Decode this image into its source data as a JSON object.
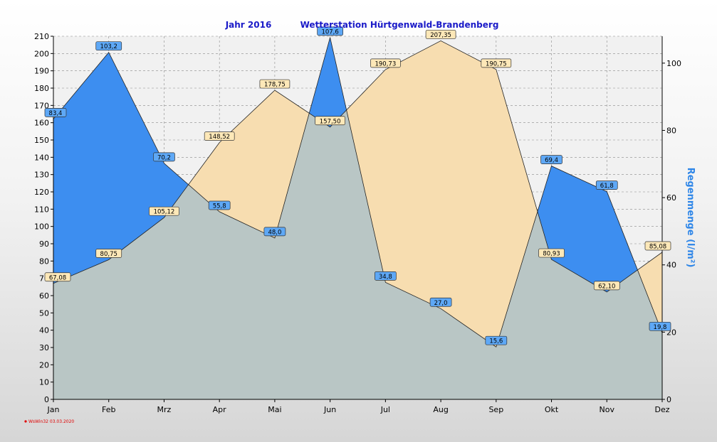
{
  "chart_data": {
    "type": "area",
    "title_year": "Jahr  2016",
    "title_station": "Wetterstation Hürtgenwald-Brandenberg",
    "categories": [
      "Jan",
      "Feb",
      "Mrz",
      "Apr",
      "Mai",
      "Jun",
      "Jul",
      "Aug",
      "Sep",
      "Okt",
      "Nov",
      "Dez"
    ],
    "left_axis": {
      "label": "",
      "range": [
        0,
        210
      ],
      "step": 10
    },
    "right_axis": {
      "label": "Regenmenge  (l/m²)",
      "range": [
        0,
        108
      ],
      "ticks": [
        0,
        20,
        40,
        60,
        80,
        100
      ]
    },
    "series": [
      {
        "axis": "left",
        "fill": "#f7ddb0",
        "label_bg": "#fde8b8",
        "values": [
          67.08,
          80.75,
          105.12,
          148.52,
          178.75,
          157.5,
          190.73,
          207.35,
          190.75,
          80.93,
          62.1,
          85.08
        ],
        "labels": [
          "67,08",
          "80,75",
          "105,12",
          "148,52",
          "178,75",
          "157,50",
          "190,73",
          "207,35",
          "190,75",
          "80,93",
          "62,10",
          "85,08"
        ]
      },
      {
        "axis": "right",
        "fill": "#3d8ef0",
        "label_bg": "#5ea8f6",
        "values": [
          83.4,
          103.2,
          70.2,
          55.8,
          48.0,
          107.6,
          34.8,
          27.0,
          15.6,
          69.4,
          61.8,
          19.8
        ],
        "labels": [
          "83,4",
          "103,2",
          "70,2",
          "55,8",
          "48,0",
          "107,6",
          "34,8",
          "27,0",
          "15,6",
          "69,4",
          "61,8",
          "19,8"
        ]
      }
    ],
    "grid": true,
    "overlap_fill": "#b9c6c5",
    "footer": "WsWin32  03.03.2020"
  }
}
